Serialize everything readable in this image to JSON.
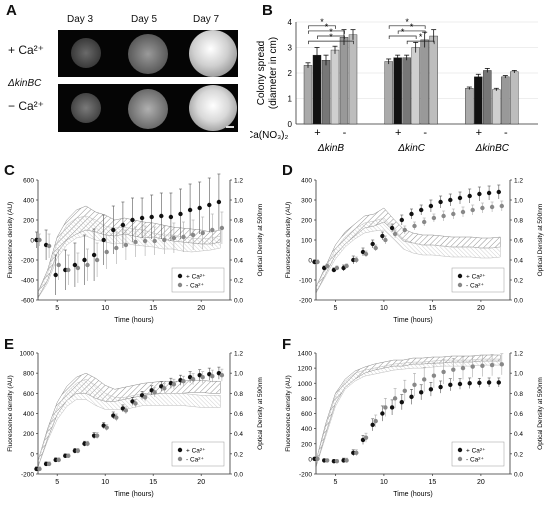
{
  "panel_a": {
    "label": "A",
    "days": [
      "Day 3",
      "Day 5",
      "Day 7"
    ],
    "strain": "ΔkinBC",
    "conditions": [
      "+ Ca²⁺",
      "− Ca²⁺"
    ]
  },
  "panel_b": {
    "label": "B",
    "ylabel_1": "Colony spread",
    "ylabel_2": "(diameter in cm)",
    "ca_label": "Ca(NO₃)₂",
    "plus": "+",
    "minus": "-",
    "star": "*",
    "strains": [
      "ΔkinB",
      "ΔkinC",
      "ΔkinBC"
    ]
  },
  "line_panels": {
    "c": {
      "label": "C",
      "y_left": "Fluorescence density (AU)",
      "y_right": "Optical Density at 590nm",
      "x": "Time (hours)",
      "legend_plus": "+ Ca²⁺",
      "legend_minus": "- Ca²⁺"
    },
    "d": {
      "label": "D",
      "y_left": "Fluorescence density (AU)",
      "y_right": "Optical Density at 590nm",
      "x": "Time (hours)",
      "legend_plus": "+ Ca²⁺",
      "legend_minus": "- Ca²⁺"
    },
    "e": {
      "label": "E",
      "y_left": "Fluorescence density (AU)",
      "y_right": "Optical Density at 590nm",
      "x": "Time (hours)",
      "legend_plus": "+ Ca²⁺",
      "legend_minus": "- Ca²⁺"
    },
    "f": {
      "label": "F",
      "y_left": "Fluorescence density (AU)",
      "y_right": "Optical Density at 590nm",
      "x": "Time (hours)",
      "legend_plus": "+ Ca²⁺",
      "legend_minus": "- Ca²⁺"
    }
  },
  "chart_data": [
    {
      "type": "bar",
      "panel": "B",
      "categories": [
        "ΔkinB",
        "ΔkinC",
        "ΔkinBC"
      ],
      "ylim": [
        0,
        4
      ],
      "yticks": [
        0,
        1,
        2,
        3,
        4
      ],
      "bars_per_group": 6,
      "values": [
        [
          2.3,
          2.7,
          2.5,
          2.9,
          3.4,
          3.5
        ],
        [
          2.45,
          2.6,
          2.6,
          3.0,
          3.3,
          3.45
        ],
        [
          1.4,
          1.85,
          2.1,
          1.35,
          1.85,
          2.05
        ]
      ],
      "errors": [
        [
          0.1,
          0.3,
          0.2,
          0.15,
          0.3,
          0.2
        ],
        [
          0.1,
          0.1,
          0.1,
          0.2,
          0.3,
          0.25
        ],
        [
          0.05,
          0.1,
          0.08,
          0.05,
          0.05,
          0.05
        ]
      ],
      "colors": [
        "#aaaaaa",
        "#111111",
        "#777777",
        "#cfcfcf",
        "#999999",
        "#bdbdbd"
      ]
    },
    {
      "type": "line",
      "panel": "C",
      "x": [
        3,
        4,
        5,
        6,
        7,
        8,
        9,
        10,
        11,
        12,
        13,
        14,
        15,
        16,
        17,
        18,
        19,
        20,
        21,
        22
      ],
      "xticks": [
        5,
        10,
        15,
        20
      ],
      "xlim": [
        3,
        23
      ],
      "ylim": [
        -600,
        600
      ],
      "yticks": [
        -600,
        -400,
        -200,
        0,
        200,
        400,
        600
      ],
      "y2lim": [
        0,
        1.2
      ],
      "y2ticks": [
        0,
        0.2,
        0.4,
        0.6,
        0.8,
        1.0,
        1.2
      ],
      "series": [
        {
          "values": [
            0,
            -50,
            -350,
            -300,
            -250,
            -200,
            -150,
            0,
            100,
            150,
            200,
            220,
            230,
            240,
            230,
            260,
            300,
            320,
            350,
            380
          ],
          "err": [
            80,
            150,
            200,
            200,
            220,
            250,
            260,
            250,
            240,
            230,
            220,
            200,
            220,
            230,
            240,
            250,
            260,
            260,
            270,
            280
          ]
        },
        {
          "values": [
            0,
            -60,
            -250,
            -300,
            -280,
            -250,
            -200,
            -120,
            -80,
            -50,
            -20,
            -10,
            -10,
            0,
            20,
            30,
            50,
            70,
            100,
            120
          ],
          "err": [
            60,
            120,
            150,
            150,
            150,
            160,
            170,
            170,
            160,
            150,
            150,
            150,
            140,
            140,
            150,
            150,
            150,
            160,
            160,
            160
          ]
        }
      ],
      "od": [
        {
          "values": [
            0.05,
            0.25,
            0.55,
            0.7,
            0.78,
            0.82,
            0.78,
            0.75,
            0.72,
            0.74,
            0.72,
            0.7,
            0.7,
            0.68,
            0.66,
            0.65,
            0.64,
            0.63,
            0.62,
            0.64
          ],
          "err": [
            0.03,
            0.05,
            0.08,
            0.1,
            0.12,
            0.12,
            0.1,
            0.1,
            0.08,
            0.08,
            0.08,
            0.08,
            0.07,
            0.07,
            0.07,
            0.07,
            0.07,
            0.07,
            0.06,
            0.06
          ]
        },
        {
          "values": [
            0.05,
            0.22,
            0.5,
            0.65,
            0.72,
            0.74,
            0.7,
            0.66,
            0.64,
            0.65,
            0.63,
            0.62,
            0.6,
            0.58,
            0.58,
            0.56,
            0.55,
            0.55,
            0.56,
            0.58
          ],
          "err": [
            0.03,
            0.05,
            0.08,
            0.1,
            0.1,
            0.1,
            0.1,
            0.08,
            0.08,
            0.08,
            0.08,
            0.08,
            0.07,
            0.07,
            0.07,
            0.07,
            0.07,
            0.06,
            0.06,
            0.06
          ]
        }
      ]
    },
    {
      "type": "line",
      "panel": "D",
      "x": [
        3,
        4,
        5,
        6,
        7,
        8,
        9,
        10,
        11,
        12,
        13,
        14,
        15,
        16,
        17,
        18,
        19,
        20,
        21,
        22
      ],
      "xticks": [
        5,
        10,
        15,
        20
      ],
      "xlim": [
        3,
        23
      ],
      "ylim": [
        -200,
        400
      ],
      "yticks": [
        -200,
        -100,
        0,
        100,
        200,
        300,
        400
      ],
      "y2lim": [
        0,
        1.2
      ],
      "y2ticks": [
        0,
        0.2,
        0.4,
        0.6,
        0.8,
        1.0,
        1.2
      ],
      "series": [
        {
          "values": [
            -10,
            -40,
            -50,
            -40,
            0,
            40,
            80,
            120,
            160,
            200,
            230,
            250,
            270,
            290,
            300,
            310,
            320,
            330,
            335,
            340
          ],
          "err": [
            10,
            10,
            10,
            15,
            20,
            20,
            20,
            20,
            20,
            25,
            25,
            25,
            30,
            30,
            30,
            30,
            35,
            35,
            35,
            35
          ]
        },
        {
          "values": [
            -10,
            -30,
            -40,
            -30,
            0,
            30,
            60,
            100,
            130,
            150,
            170,
            190,
            210,
            220,
            230,
            240,
            250,
            260,
            265,
            270
          ],
          "err": [
            10,
            10,
            10,
            10,
            15,
            15,
            15,
            20,
            20,
            20,
            20,
            20,
            20,
            25,
            25,
            25,
            25,
            25,
            25,
            25
          ]
        }
      ],
      "od": [
        {
          "values": [
            0.1,
            0.3,
            0.5,
            0.62,
            0.7,
            0.78,
            0.8,
            0.85,
            0.75,
            0.65,
            0.62,
            0.6,
            0.6,
            0.59,
            0.58,
            0.58,
            0.58,
            0.57,
            0.57,
            0.58
          ],
          "err": [
            0.03,
            0.04,
            0.05,
            0.06,
            0.06,
            0.06,
            0.06,
            0.07,
            0.06,
            0.06,
            0.05,
            0.05,
            0.05,
            0.05,
            0.05,
            0.05,
            0.05,
            0.05,
            0.05,
            0.05
          ]
        },
        {
          "values": [
            0.1,
            0.28,
            0.46,
            0.58,
            0.66,
            0.72,
            0.74,
            0.76,
            0.66,
            0.56,
            0.52,
            0.5,
            0.5,
            0.49,
            0.48,
            0.48,
            0.48,
            0.47,
            0.47,
            0.48
          ],
          "err": [
            0.03,
            0.04,
            0.05,
            0.05,
            0.05,
            0.05,
            0.05,
            0.06,
            0.05,
            0.05,
            0.05,
            0.05,
            0.05,
            0.05,
            0.05,
            0.05,
            0.05,
            0.05,
            0.05,
            0.05
          ]
        }
      ]
    },
    {
      "type": "line",
      "panel": "E",
      "x": [
        3,
        4,
        5,
        6,
        7,
        8,
        9,
        10,
        11,
        12,
        13,
        14,
        15,
        16,
        17,
        18,
        19,
        20,
        21,
        22
      ],
      "xticks": [
        5,
        10,
        15,
        20
      ],
      "xlim": [
        3,
        23
      ],
      "ylim": [
        -200,
        1000
      ],
      "yticks": [
        -200,
        0,
        200,
        400,
        600,
        800,
        1000
      ],
      "y2lim": [
        0,
        1.2
      ],
      "y2ticks": [
        0,
        0.2,
        0.4,
        0.6,
        0.8,
        1.0,
        1.2
      ],
      "series": [
        {
          "values": [
            -150,
            -100,
            -60,
            -20,
            30,
            100,
            180,
            280,
            380,
            450,
            520,
            580,
            630,
            670,
            700,
            730,
            760,
            780,
            790,
            800
          ],
          "err": [
            20,
            20,
            20,
            20,
            25,
            25,
            30,
            30,
            35,
            35,
            40,
            40,
            45,
            45,
            50,
            50,
            55,
            55,
            60,
            60
          ]
        },
        {
          "values": [
            -150,
            -100,
            -60,
            -20,
            30,
            100,
            180,
            260,
            360,
            430,
            500,
            560,
            610,
            650,
            690,
            720,
            740,
            760,
            770,
            780
          ],
          "err": [
            20,
            20,
            20,
            20,
            25,
            25,
            30,
            30,
            35,
            35,
            40,
            40,
            45,
            45,
            50,
            50,
            55,
            55,
            60,
            60
          ]
        }
      ],
      "od": [
        {
          "values": [
            0.1,
            0.4,
            0.65,
            0.8,
            0.88,
            0.9,
            0.85,
            0.8,
            0.78,
            0.8,
            0.82,
            0.84,
            0.85,
            0.86,
            0.86,
            0.86,
            0.87,
            0.87,
            0.86,
            0.86
          ],
          "err": [
            0.03,
            0.05,
            0.06,
            0.07,
            0.08,
            0.1,
            0.1,
            0.08,
            0.06,
            0.06,
            0.06,
            0.06,
            0.06,
            0.06,
            0.06,
            0.06,
            0.06,
            0.06,
            0.06,
            0.06
          ]
        },
        {
          "values": [
            0.1,
            0.38,
            0.6,
            0.74,
            0.82,
            0.84,
            0.78,
            0.72,
            0.7,
            0.7,
            0.72,
            0.74,
            0.74,
            0.74,
            0.74,
            0.74,
            0.73,
            0.72,
            0.72,
            0.72
          ],
          "err": [
            0.03,
            0.05,
            0.06,
            0.07,
            0.08,
            0.1,
            0.1,
            0.08,
            0.06,
            0.06,
            0.06,
            0.06,
            0.06,
            0.06,
            0.06,
            0.06,
            0.06,
            0.06,
            0.06,
            0.06
          ]
        }
      ]
    },
    {
      "type": "line",
      "panel": "F",
      "x": [
        3,
        4,
        5,
        6,
        7,
        8,
        9,
        10,
        11,
        12,
        13,
        14,
        15,
        16,
        17,
        18,
        19,
        20,
        21,
        22
      ],
      "xticks": [
        5,
        10,
        15,
        20
      ],
      "xlim": [
        3,
        23
      ],
      "ylim": [
        -200,
        1400
      ],
      "yticks": [
        -200,
        0,
        200,
        400,
        600,
        800,
        1000,
        1200,
        1400
      ],
      "y2lim": [
        0,
        1.2
      ],
      "y2ticks": [
        0,
        0.2,
        0.4,
        0.6,
        0.8,
        1.0,
        1.2
      ],
      "series": [
        {
          "values": [
            0,
            -20,
            -30,
            -20,
            80,
            250,
            450,
            600,
            680,
            750,
            820,
            880,
            920,
            950,
            980,
            990,
            1000,
            1005,
            1010,
            1010
          ],
          "err": [
            20,
            20,
            20,
            30,
            40,
            60,
            80,
            100,
            100,
            100,
            100,
            100,
            90,
            80,
            80,
            70,
            70,
            60,
            60,
            60
          ]
        },
        {
          "values": [
            0,
            -20,
            -30,
            -20,
            80,
            280,
            500,
            680,
            800,
            900,
            980,
            1050,
            1100,
            1150,
            1180,
            1200,
            1220,
            1230,
            1240,
            1250
          ],
          "err": [
            20,
            20,
            20,
            30,
            40,
            60,
            80,
            120,
            130,
            140,
            150,
            160,
            160,
            160,
            150,
            150,
            140,
            140,
            140,
            140
          ]
        }
      ],
      "od": [
        {
          "values": [
            0.1,
            0.45,
            0.75,
            0.9,
            0.98,
            1.03,
            1.06,
            1.08,
            1.1,
            1.1,
            1.12,
            1.12,
            1.13,
            1.13,
            1.14,
            1.14,
            1.14,
            1.15,
            1.15,
            1.15
          ],
          "err": [
            0.03,
            0.05,
            0.05,
            0.04,
            0.04,
            0.03,
            0.03,
            0.03,
            0.03,
            0.03,
            0.03,
            0.03,
            0.03,
            0.03,
            0.03,
            0.03,
            0.03,
            0.03,
            0.03,
            0.03
          ]
        },
        {
          "values": [
            0.1,
            0.42,
            0.72,
            0.88,
            0.96,
            1.0,
            1.02,
            1.04,
            1.06,
            1.07,
            1.08,
            1.08,
            1.09,
            1.1,
            1.1,
            1.1,
            1.1,
            1.11,
            1.11,
            1.11
          ],
          "err": [
            0.03,
            0.05,
            0.05,
            0.04,
            0.04,
            0.03,
            0.03,
            0.03,
            0.03,
            0.03,
            0.03,
            0.03,
            0.03,
            0.03,
            0.03,
            0.03,
            0.03,
            0.03,
            0.03,
            0.03
          ]
        }
      ]
    }
  ]
}
